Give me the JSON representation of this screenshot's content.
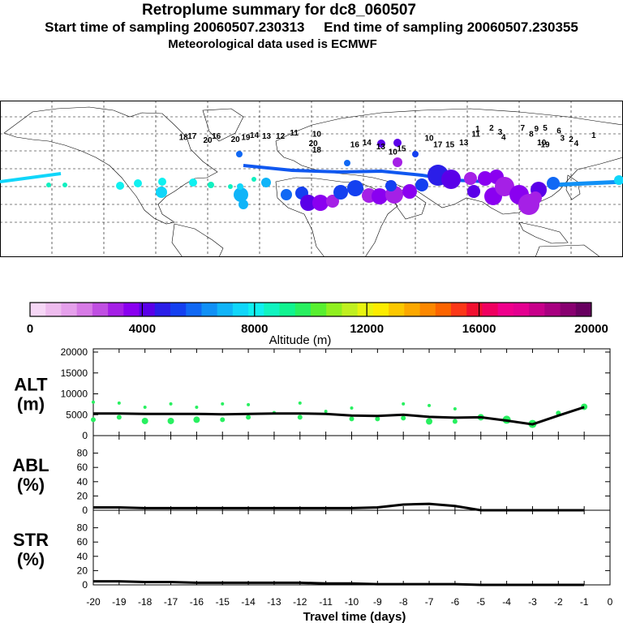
{
  "header": {
    "title": "Retroplume summary for dc8_060507",
    "sampling_line": "Start time of sampling 20060507.230313     End time of sampling 20060507.230355",
    "met_line": "Meteorological data used is ECMWF"
  },
  "colorbar": {
    "label": "Altitude (m)",
    "tick_labels": [
      "0",
      "4000",
      "8000",
      "12000",
      "16000",
      "20000"
    ],
    "colors": [
      "#f6d7f6",
      "#eebcee",
      "#e5a0eb",
      "#d77be6",
      "#c04fe2",
      "#a520e6",
      "#8a00f0",
      "#5a00e8",
      "#2b1ee8",
      "#1440f0",
      "#1068f4",
      "#1090f6",
      "#10b4f8",
      "#10d6fa",
      "#10f0f0",
      "#10f4c0",
      "#10f490",
      "#28f060",
      "#58f030",
      "#90f020",
      "#c0f020",
      "#e8f410",
      "#fcec00",
      "#fcc800",
      "#fca800",
      "#fc8800",
      "#fc6400",
      "#fc3818",
      "#f01030",
      "#f00060",
      "#f0008c",
      "#e40090",
      "#c8008a",
      "#a80080",
      "#880070",
      "#680060"
    ]
  },
  "map": {
    "labels": [
      {
        "text": "20",
        "lon": -60,
        "lat": 30
      },
      {
        "text": "18",
        "lon": -74,
        "lat": 33
      },
      {
        "text": "17",
        "lon": -69,
        "lat": 34
      },
      {
        "text": "16",
        "lon": -55,
        "lat": 34
      },
      {
        "text": "20",
        "lon": -44,
        "lat": 31
      },
      {
        "text": "19",
        "lon": -38,
        "lat": 33
      },
      {
        "text": "14",
        "lon": -33,
        "lat": 35
      },
      {
        "text": "13",
        "lon": -26,
        "lat": 34
      },
      {
        "text": "12",
        "lon": -18,
        "lat": 34
      },
      {
        "text": "11",
        "lon": -10,
        "lat": 37
      },
      {
        "text": "10",
        "lon": 3,
        "lat": 36
      },
      {
        "text": "20",
        "lon": 1,
        "lat": 27
      },
      {
        "text": "18",
        "lon": 3,
        "lat": 21
      },
      {
        "text": "16",
        "lon": 25,
        "lat": 26
      },
      {
        "text": "14",
        "lon": 32,
        "lat": 28
      },
      {
        "text": "13",
        "lon": 40,
        "lat": 24
      },
      {
        "text": "10",
        "lon": 47,
        "lat": 19
      },
      {
        "text": "15",
        "lon": 52,
        "lat": 22
      },
      {
        "text": "10",
        "lon": 68,
        "lat": 32
      },
      {
        "text": "17",
        "lon": 73,
        "lat": 26
      },
      {
        "text": "15",
        "lon": 80,
        "lat": 26
      },
      {
        "text": "13",
        "lon": 88,
        "lat": 28
      },
      {
        "text": "11",
        "lon": 95,
        "lat": 36
      },
      {
        "text": "1",
        "lon": 96,
        "lat": 41
      },
      {
        "text": "2",
        "lon": 104,
        "lat": 42
      },
      {
        "text": "3",
        "lon": 109,
        "lat": 38
      },
      {
        "text": "4",
        "lon": 111,
        "lat": 33
      },
      {
        "text": "7",
        "lon": 122,
        "lat": 42
      },
      {
        "text": "8",
        "lon": 127,
        "lat": 36
      },
      {
        "text": "9",
        "lon": 130,
        "lat": 41
      },
      {
        "text": "5",
        "lon": 135,
        "lat": 42
      },
      {
        "text": "6",
        "lon": 143,
        "lat": 39
      },
      {
        "text": "3",
        "lon": 145,
        "lat": 32
      },
      {
        "text": "2",
        "lon": 150,
        "lat": 31
      },
      {
        "text": "4",
        "lon": 153,
        "lat": 27
      },
      {
        "text": "10",
        "lon": 133,
        "lat": 28
      },
      {
        "text": "19",
        "lon": 135,
        "lat": 26
      },
      {
        "text": "1",
        "lon": 163,
        "lat": 35
      }
    ]
  },
  "chart_data": {
    "type": "line",
    "xlabel": "Travel time (days)",
    "x_tick_labels": [
      "-20",
      "-19",
      "-18",
      "-17",
      "-16",
      "-15",
      "-14",
      "-13",
      "-12",
      "-11",
      "-10",
      "-9",
      "-8",
      "-7",
      "-6",
      "-5",
      "-4",
      "-3",
      "-2",
      "-1",
      "0"
    ],
    "xlim": [
      -20,
      0
    ],
    "panels": [
      {
        "name": "ALT",
        "label": "ALT\n(m)",
        "ylim": [
          0,
          20000
        ],
        "y_tick_labels": [
          "0",
          "5000",
          "10000",
          "15000",
          "20000"
        ],
        "median": {
          "x": [
            -20,
            -19,
            -18,
            -17,
            -16,
            -15,
            -14,
            -13,
            -12,
            -11,
            -10,
            -9,
            -8,
            -7,
            -6,
            -5,
            -4,
            -3,
            -2,
            -1
          ],
          "y": [
            5300,
            5300,
            5200,
            5200,
            5200,
            5100,
            5200,
            5300,
            5300,
            5200,
            4800,
            4700,
            5000,
            4500,
            4300,
            4400,
            3600,
            2700,
            4800,
            6800
          ]
        },
        "dots": {
          "x": [
            -20,
            -20,
            -19,
            -19,
            -18,
            -18,
            -17,
            -17,
            -16,
            -16,
            -15,
            -15,
            -14,
            -14,
            -13,
            -12,
            -12,
            -11,
            -10,
            -10,
            -9,
            -8,
            -8,
            -7,
            -7,
            -6,
            -6,
            -5,
            -4,
            -3,
            -2,
            -1
          ],
          "y": [
            3800,
            8000,
            4400,
            7800,
            3500,
            6800,
            3500,
            7600,
            3800,
            6800,
            3800,
            7600,
            4400,
            7400,
            5500,
            4400,
            7800,
            5800,
            4000,
            6600,
            4000,
            4200,
            7600,
            3400,
            7200,
            3400,
            6400,
            4400,
            3800,
            2800,
            5400,
            6900
          ],
          "size": [
            3,
            2,
            3,
            2,
            4,
            2,
            4,
            2,
            4,
            2,
            3,
            2,
            3,
            2,
            2,
            3,
            2,
            2,
            3,
            2,
            3,
            3,
            2,
            4,
            2,
            3,
            2,
            4,
            5,
            5,
            3,
            4
          ]
        }
      },
      {
        "name": "ABL",
        "label": "ABL\n(%)",
        "ylim": [
          0,
          100
        ],
        "y_tick_labels": [
          "0",
          "20",
          "40",
          "60",
          "80"
        ],
        "median": {
          "x": [
            -20,
            -19,
            -18,
            -17,
            -16,
            -15,
            -14,
            -13,
            -12,
            -11,
            -10,
            -9,
            -8,
            -7,
            -6,
            -5,
            -4,
            -3,
            -2,
            -1
          ],
          "y": [
            4,
            4,
            3,
            3,
            3,
            3,
            3,
            3,
            3,
            3,
            3,
            4,
            8,
            9,
            6,
            0,
            0,
            0,
            0,
            0
          ]
        }
      },
      {
        "name": "STR",
        "label": "STR\n(%)",
        "ylim": [
          0,
          100
        ],
        "y_tick_labels": [
          "0",
          "20",
          "40",
          "60",
          "80"
        ],
        "median": {
          "x": [
            -20,
            -19,
            -18,
            -17,
            -16,
            -15,
            -14,
            -13,
            -12,
            -11,
            -10,
            -9,
            -8,
            -7,
            -6,
            -5,
            -4,
            -3,
            -2,
            -1
          ],
          "y": [
            5,
            5,
            4,
            4,
            3,
            3,
            3,
            3,
            3,
            2,
            2,
            1,
            1,
            1,
            1,
            0,
            0,
            0,
            0,
            0
          ]
        }
      }
    ]
  }
}
